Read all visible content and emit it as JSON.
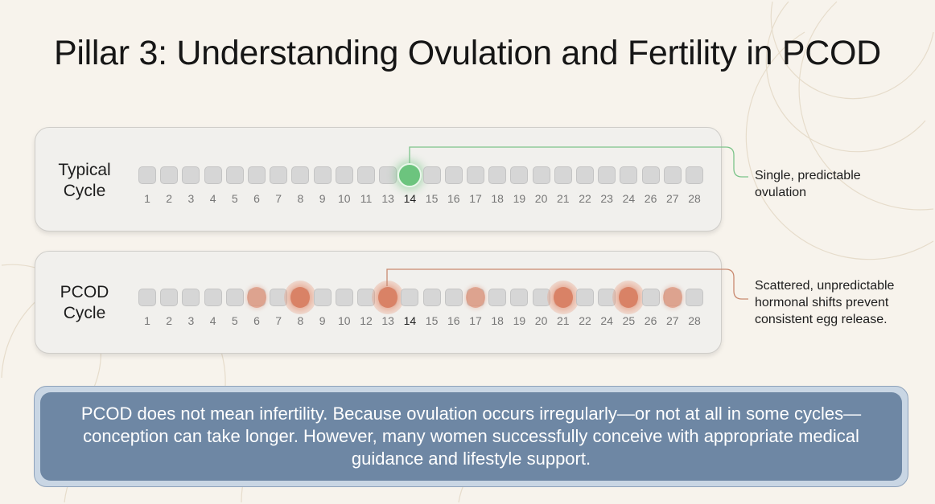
{
  "title": "Pillar 3: Understanding Ovulation and Fertility in PCOD",
  "colors": {
    "background": "#f7f3ec",
    "ovulation_typical": "#6cc47e",
    "ovulation_pcod": "#d98a6c",
    "summary_box": "#6e87a4"
  },
  "typical": {
    "label_line1": "Typical",
    "label_line2": "Cycle",
    "days": [
      "1",
      "2",
      "3",
      "4",
      "5",
      "6",
      "7",
      "8",
      "9",
      "10",
      "11",
      "13",
      "14",
      "15",
      "16",
      "17",
      "18",
      "19",
      "20",
      "21",
      "22",
      "23",
      "24",
      "26",
      "27",
      "28"
    ],
    "bold_day": "14",
    "ovulation_days": [
      "14"
    ],
    "note_line1": "Single, predictable",
    "note_line2": "ovulation"
  },
  "pcod": {
    "label_line1": "PCOD",
    "label_line2": "Cycle",
    "days": [
      "1",
      "2",
      "3",
      "4",
      "5",
      "6",
      "7",
      "8",
      "9",
      "10",
      "12",
      "13",
      "14",
      "15",
      "16",
      "17",
      "18",
      "19",
      "20",
      "21",
      "22",
      "24",
      "25",
      "26",
      "27",
      "28"
    ],
    "bold_day": "14",
    "hormonal_shift_days": [
      {
        "day": "6",
        "halo": false
      },
      {
        "day": "8",
        "halo": true
      },
      {
        "day": "13",
        "halo": true
      },
      {
        "day": "17",
        "halo": false
      },
      {
        "day": "21",
        "halo": true
      },
      {
        "day": "25",
        "halo": true
      },
      {
        "day": "27",
        "halo": false
      }
    ],
    "note_line1": "Scattered, unpredictable",
    "note_line2": "hormonal shifts prevent",
    "note_line3": "consistent egg release."
  },
  "summary": "PCOD does not mean infertility. Because ovulation occurs irregularly—or not at all in some cycles—conception can take longer. However, many women successfully conceive with appropriate medical guidance and lifestyle support."
}
